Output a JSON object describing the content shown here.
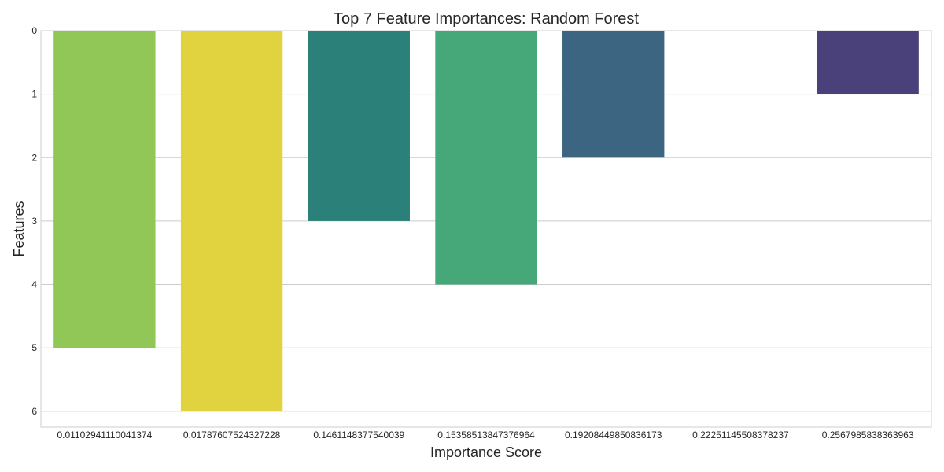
{
  "chart_data": {
    "type": "bar",
    "orientation": "vertical",
    "title": "Top 7 Feature Importances: Random Forest",
    "xlabel": "Importance Score",
    "ylabel": "Features",
    "ylim": [
      0,
      6.25
    ],
    "y_inverted": true,
    "yticks": [
      "0",
      "1",
      "2",
      "3",
      "4",
      "5",
      "6"
    ],
    "grid": true,
    "categories": [
      "0.01102941110041374",
      "0.01787607524327228",
      "0.1461148377540039",
      "0.15358513847376964",
      "0.19208449850836173",
      "0.22251145508378237",
      "0.2567985838363963"
    ],
    "values": [
      5,
      6,
      3,
      4,
      2,
      0,
      1
    ],
    "colors": [
      "#90c757",
      "#e0d33f",
      "#2b8179",
      "#46a879",
      "#3b6581",
      "#ffffff",
      "#4a417a"
    ]
  }
}
